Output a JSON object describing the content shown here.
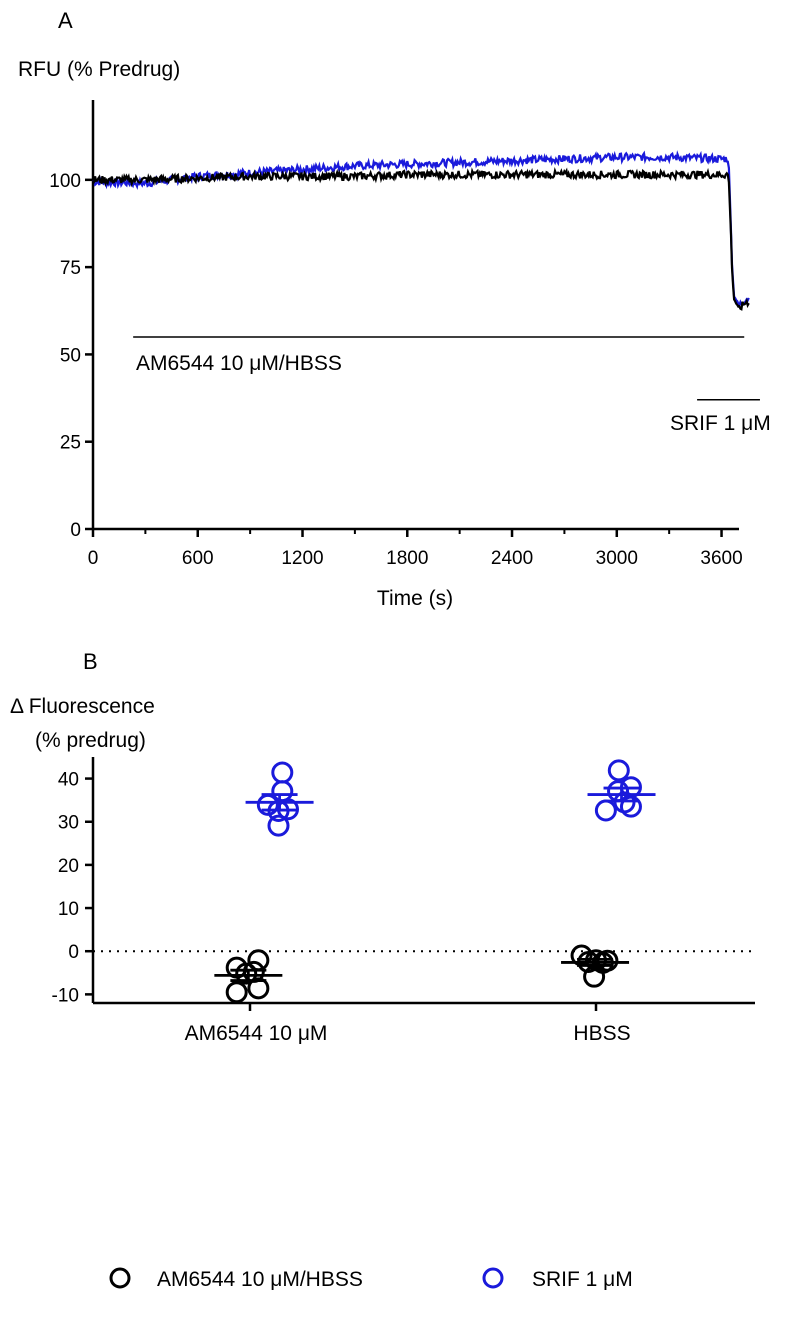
{
  "colors": {
    "black_series": "#000000",
    "blue_series": "#1a1adb"
  },
  "legend": {
    "placement": "bottom",
    "items": [
      {
        "label": "AM6544 10 μM/HBSS",
        "color": "#000000",
        "marker": "open-circle"
      },
      {
        "label": "SRIF 1 μM",
        "color": "#1a1adb",
        "marker": "open-circle"
      }
    ]
  },
  "chart_data": [
    {
      "type": "line",
      "panel_label": "A",
      "ylabel": "RFU (% Predrug)",
      "xlabel": "Time (s)",
      "xlim": [
        0,
        3700
      ],
      "ylim": [
        0,
        120
      ],
      "xticks": [
        0,
        600,
        1200,
        1800,
        2400,
        3000,
        3600
      ],
      "yticks": [
        0,
        25,
        50,
        75,
        100
      ],
      "series": [
        {
          "color": "#000000",
          "x": [
            0,
            300,
            600,
            900,
            1200,
            1500,
            1800,
            2100,
            2400,
            2700,
            3000,
            3300,
            3600,
            3640,
            3650,
            3660,
            3670,
            3700,
            3740,
            3760
          ],
          "y": [
            100,
            100,
            100.5,
            101,
            101,
            101,
            101.5,
            101.5,
            101.5,
            101.5,
            101.5,
            101.5,
            101.5,
            101.5,
            90,
            75,
            66,
            63,
            65,
            65
          ]
        },
        {
          "color": "#1a1adb",
          "x": [
            0,
            300,
            600,
            900,
            1200,
            1500,
            1800,
            2100,
            2400,
            2700,
            3000,
            3300,
            3600,
            3640,
            3650,
            3660,
            3670,
            3700,
            3740,
            3760
          ],
          "y": [
            99.5,
            99,
            101,
            102,
            103,
            104,
            104.5,
            105,
            105.5,
            106,
            106.5,
            106.5,
            106,
            106,
            92,
            76,
            67,
            64,
            66,
            66
          ]
        }
      ],
      "annotations": [
        {
          "text": "AM6544 10 μM/HBSS",
          "x_start": 230,
          "x_end": 3730,
          "y": 55
        },
        {
          "text": "SRIF 1 μM",
          "x_start": 3460,
          "x_end": 3820,
          "y": 37
        }
      ]
    },
    {
      "type": "scatter",
      "panel_label": "B",
      "ylabel_line1": "Δ Fluorescence",
      "ylabel_line2": "(% predrug)",
      "categories": [
        "AM6544 10 μM",
        "HBSS"
      ],
      "ylim": [
        -12,
        45
      ],
      "yticks": [
        -10,
        0,
        10,
        20,
        30,
        40
      ],
      "reference_line_y": 0,
      "groups": [
        {
          "category": "AM6544 10 μM",
          "color": "#000000",
          "points": [
            {
              "dx": -0.35,
              "y": -3.8
            },
            {
              "dx": -0.1,
              "y": -5.2
            },
            {
              "dx": 0.1,
              "y": -4.8
            },
            {
              "dx": 0.22,
              "y": -2.1
            },
            {
              "dx": 0.22,
              "y": -8.6
            },
            {
              "dx": -0.35,
              "y": -9.5
            }
          ],
          "mean": -5.6,
          "sem": 1.2
        },
        {
          "category": "AM6544 10 μM",
          "color": "#1a1adb",
          "points": [
            {
              "dx": 0.47,
              "y": 33.9
            },
            {
              "dx": 0.85,
              "y": 41.4
            },
            {
              "dx": 0.85,
              "y": 37.1
            },
            {
              "dx": 0.75,
              "y": 32.5
            },
            {
              "dx": 1.0,
              "y": 32.9
            },
            {
              "dx": 0.75,
              "y": 29.1
            }
          ],
          "mean": 34.5,
          "sem": 1.8
        },
        {
          "category": "HBSS",
          "color": "#000000",
          "points": [
            {
              "dx": -0.38,
              "y": -1.0
            },
            {
              "dx": -0.2,
              "y": -2.5
            },
            {
              "dx": 0.0,
              "y": -2.1
            },
            {
              "dx": 0.18,
              "y": -2.7
            },
            {
              "dx": 0.3,
              "y": -2.2
            },
            {
              "dx": -0.05,
              "y": -5.9
            }
          ],
          "mean": -2.6,
          "sem": 0.7
        },
        {
          "category": "HBSS",
          "color": "#1a1adb",
          "points": [
            {
              "dx": 0.26,
              "y": 32.6
            },
            {
              "dx": 0.6,
              "y": 41.9
            },
            {
              "dx": 0.58,
              "y": 37.1
            },
            {
              "dx": 0.75,
              "y": 34.5
            },
            {
              "dx": 0.92,
              "y": 38.0
            },
            {
              "dx": 0.92,
              "y": 33.5
            }
          ],
          "mean": 36.3,
          "sem": 1.5
        }
      ]
    }
  ]
}
